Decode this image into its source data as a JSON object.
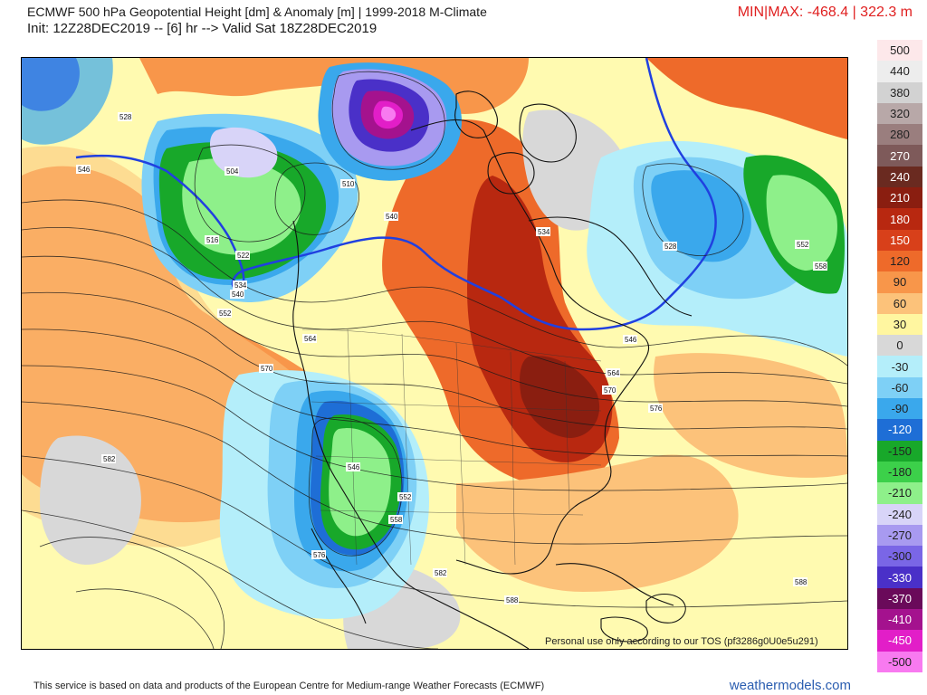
{
  "header": {
    "title": "ECMWF 500 hPa Geopotential Height [dm] & Anomaly [m] | 1999-2018 M-Climate",
    "subtitle": "Init: 12Z28DEC2019 -- [6] hr --> Valid Sat 18Z28DEC2019",
    "minmax": "MIN|MAX: -468.4 | 322.3 m"
  },
  "map": {
    "disclaimer": "Personal use only according to our TOS (pf3286g0U0e5u291)",
    "contour_labels": [
      "528",
      "546",
      "504",
      "516",
      "522",
      "534",
      "540",
      "552",
      "510",
      "564",
      "570",
      "546",
      "552",
      "558",
      "582",
      "576",
      "528",
      "552",
      "558",
      "546",
      "564",
      "570",
      "576",
      "582",
      "588",
      "588",
      "540",
      "534"
    ]
  },
  "colorbar": {
    "levels": [
      {
        "label": "500",
        "color": "#fde8ea"
      },
      {
        "label": "440",
        "color": "#ededed"
      },
      {
        "label": "380",
        "color": "#d2d2d2"
      },
      {
        "label": "320",
        "color": "#b8a8a8"
      },
      {
        "label": "280",
        "color": "#9a7e7e"
      },
      {
        "label": "270",
        "color": "#7e5a5a"
      },
      {
        "label": "240",
        "color": "#6a2a20"
      },
      {
        "label": "210",
        "color": "#8a1e10"
      },
      {
        "label": "180",
        "color": "#b82810"
      },
      {
        "label": "150",
        "color": "#d8401a"
      },
      {
        "label": "120",
        "color": "#ee6a2a"
      },
      {
        "label": "90",
        "color": "#f8964a"
      },
      {
        "label": "60",
        "color": "#fcc27a"
      },
      {
        "label": "30",
        "color": "#fff6a0"
      },
      {
        "label": "0",
        "color": "#d8d8d8"
      },
      {
        "label": "-30",
        "color": "#b4eefa"
      },
      {
        "label": "-60",
        "color": "#7ed0f6"
      },
      {
        "label": "-90",
        "color": "#3aa8ec"
      },
      {
        "label": "-120",
        "color": "#1e6ed6"
      },
      {
        "label": "-150",
        "color": "#18a82a"
      },
      {
        "label": "-180",
        "color": "#3cd04a"
      },
      {
        "label": "-210",
        "color": "#8ef08a"
      },
      {
        "label": "-240",
        "color": "#d8d4f8"
      },
      {
        "label": "-270",
        "color": "#a89af0"
      },
      {
        "label": "-300",
        "color": "#7a66e6"
      },
      {
        "label": "-330",
        "color": "#4a30c8"
      },
      {
        "label": "-370",
        "color": "#6a0a5a"
      },
      {
        "label": "-410",
        "color": "#a4128e"
      },
      {
        "label": "-450",
        "color": "#e21ec8"
      },
      {
        "label": "-500",
        "color": "#f87af0"
      }
    ]
  },
  "footer": {
    "source": "This service is based on data and products of the European Centre for Medium-range Weather Forecasts (ECMWF)",
    "brand": "weathermodels.com"
  }
}
